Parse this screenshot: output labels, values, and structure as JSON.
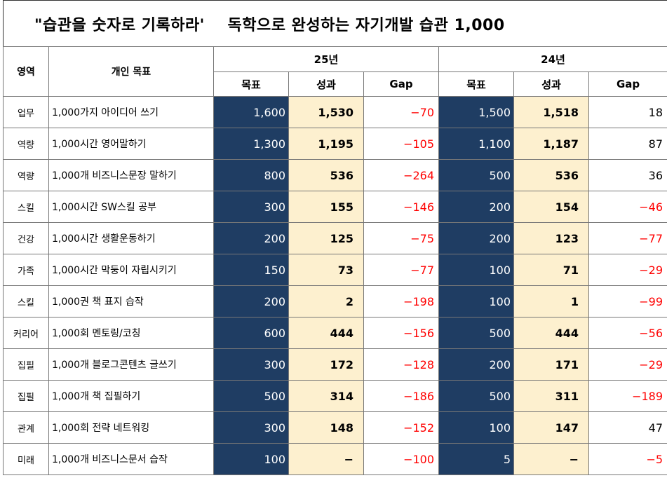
{
  "title": "\"습관을 숫자로 기록하라'    독학으로 완성하는 자기개발 습관 1,000",
  "headers": {
    "category": "영역",
    "goal": "개인 목표",
    "year_a": "25년",
    "year_b": "24년",
    "target": "목표",
    "result": "성과",
    "gap": "Gap"
  },
  "rows": [
    {
      "category": "업무",
      "goal": "1,000가지 아이디어 쓰기",
      "t25": "1,600",
      "r25": "1,530",
      "g25": "−70",
      "t24": "1,500",
      "r24": "1,518",
      "g24": "18"
    },
    {
      "category": "역량",
      "goal": "1,000시간 영어말하기",
      "t25": "1,300",
      "r25": "1,195",
      "g25": "−105",
      "t24": "1,100",
      "r24": "1,187",
      "g24": "87"
    },
    {
      "category": "역량",
      "goal": "1,000개 비즈니스문장 말하기",
      "t25": "800",
      "r25": "536",
      "g25": "−264",
      "t24": "500",
      "r24": "536",
      "g24": "36"
    },
    {
      "category": "스킬",
      "goal": "1,000시간 SW스킬 공부",
      "t25": "300",
      "r25": "155",
      "g25": "−146",
      "t24": "200",
      "r24": "154",
      "g24": "−46"
    },
    {
      "category": "건강",
      "goal": "1,000시간 생활운동하기",
      "t25": "200",
      "r25": "125",
      "g25": "−75",
      "t24": "200",
      "r24": "123",
      "g24": "−77"
    },
    {
      "category": "가족",
      "goal": "1,000시간 막둥이 자립시키기",
      "t25": "150",
      "r25": "73",
      "g25": "−77",
      "t24": "100",
      "r24": "71",
      "g24": "−29"
    },
    {
      "category": "스킬",
      "goal": "1,000권 책 표지 습작",
      "t25": "200",
      "r25": "2",
      "g25": "−198",
      "t24": "100",
      "r24": "1",
      "g24": "−99"
    },
    {
      "category": "커리어",
      "goal": "1,000회 멘토링/코칭",
      "t25": "600",
      "r25": "444",
      "g25": "−156",
      "t24": "500",
      "r24": "444",
      "g24": "−56"
    },
    {
      "category": "집필",
      "goal": "1,000개 블로그콘텐츠 글쓰기",
      "t25": "300",
      "r25": "172",
      "g25": "−128",
      "t24": "200",
      "r24": "171",
      "g24": "−29"
    },
    {
      "category": "집필",
      "goal": "1,000개 책 집필하기",
      "t25": "500",
      "r25": "314",
      "g25": "−186",
      "t24": "500",
      "r24": "311",
      "g24": "−189"
    },
    {
      "category": "관계",
      "goal": "1,000회 전략 네트워킹",
      "t25": "300",
      "r25": "148",
      "g25": "−152",
      "t24": "100",
      "r24": "147",
      "g24": "47"
    },
    {
      "category": "미래",
      "goal": "1,000개 비즈니스문서 습작",
      "t25": "100",
      "r25": "−",
      "g25": "−100",
      "t24": "5",
      "r24": "−",
      "g24": "−5"
    }
  ],
  "colors": {
    "target_fill": "#1f3d63",
    "result_fill": "#fdf0cf",
    "negative_text": "#ff0000"
  }
}
